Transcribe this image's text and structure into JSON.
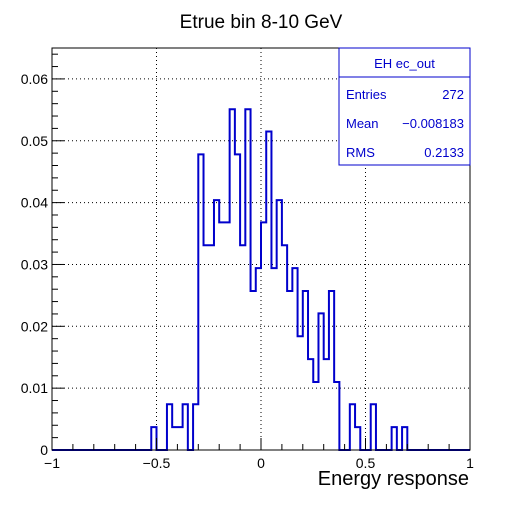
{
  "chart_data": {
    "type": "histogram",
    "title": "Etrue bin 8-10 GeV",
    "xlabel": "Energy response",
    "ylabel": "",
    "xlim": [
      -1,
      1
    ],
    "ylim": [
      0,
      0.065
    ],
    "grid": true,
    "x_ticks": [
      -1,
      -0.5,
      0,
      0.5,
      1
    ],
    "x_tick_labels": [
      "−1",
      "−0.5",
      "0",
      "0.5",
      "1"
    ],
    "y_ticks": [
      0,
      0.01,
      0.02,
      0.03,
      0.04,
      0.05,
      0.06
    ],
    "y_tick_labels": [
      "0",
      "0.01",
      "0.02",
      "0.03",
      "0.04",
      "0.05",
      "0.06"
    ],
    "bin_width": 0.025,
    "bins": [
      {
        "x_low": -1.0,
        "value": 0.0
      },
      {
        "x_low": -0.525,
        "value": 0.0037
      },
      {
        "x_low": -0.5,
        "value": 0.0
      },
      {
        "x_low": -0.45,
        "value": 0.0074
      },
      {
        "x_low": -0.425,
        "value": 0.0037
      },
      {
        "x_low": -0.375,
        "value": 0.0074
      },
      {
        "x_low": -0.35,
        "value": 0.0
      },
      {
        "x_low": -0.325,
        "value": 0.0074
      },
      {
        "x_low": -0.3,
        "value": 0.0478
      },
      {
        "x_low": -0.275,
        "value": 0.0331
      },
      {
        "x_low": -0.225,
        "value": 0.0404
      },
      {
        "x_low": -0.2,
        "value": 0.0368
      },
      {
        "x_low": -0.15,
        "value": 0.0551
      },
      {
        "x_low": -0.125,
        "value": 0.0478
      },
      {
        "x_low": -0.1,
        "value": 0.0331
      },
      {
        "x_low": -0.075,
        "value": 0.0551
      },
      {
        "x_low": -0.05,
        "value": 0.0257
      },
      {
        "x_low": -0.025,
        "value": 0.0294
      },
      {
        "x_low": 0.0,
        "value": 0.0368
      },
      {
        "x_low": 0.025,
        "value": 0.0515
      },
      {
        "x_low": 0.05,
        "value": 0.0294
      },
      {
        "x_low": 0.075,
        "value": 0.0404
      },
      {
        "x_low": 0.1,
        "value": 0.0331
      },
      {
        "x_low": 0.125,
        "value": 0.0257
      },
      {
        "x_low": 0.15,
        "value": 0.0294
      },
      {
        "x_low": 0.175,
        "value": 0.0184
      },
      {
        "x_low": 0.2,
        "value": 0.0257
      },
      {
        "x_low": 0.225,
        "value": 0.0147
      },
      {
        "x_low": 0.25,
        "value": 0.011
      },
      {
        "x_low": 0.275,
        "value": 0.0221
      },
      {
        "x_low": 0.3,
        "value": 0.0147
      },
      {
        "x_low": 0.325,
        "value": 0.0257
      },
      {
        "x_low": 0.35,
        "value": 0.011
      },
      {
        "x_low": 0.375,
        "value": 0.0
      },
      {
        "x_low": 0.425,
        "value": 0.0074
      },
      {
        "x_low": 0.45,
        "value": 0.0037
      },
      {
        "x_low": 0.475,
        "value": 0.0
      },
      {
        "x_low": 0.525,
        "value": 0.0074
      },
      {
        "x_low": 0.55,
        "value": 0.0
      },
      {
        "x_low": 0.625,
        "value": 0.0037
      },
      {
        "x_low": 0.65,
        "value": 0.0
      },
      {
        "x_low": 0.675,
        "value": 0.0037
      },
      {
        "x_low": 0.7,
        "value": 0.0
      },
      {
        "x_low": 1.0,
        "value": 0.0
      }
    ],
    "stats_box": {
      "title": "EH ec_out",
      "rows": [
        {
          "label": "Entries",
          "value": "272"
        },
        {
          "label": "Mean",
          "value": "−0.008183"
        },
        {
          "label": "RMS",
          "value": "0.2133"
        }
      ]
    },
    "colors": {
      "line": "#0000cc",
      "stats_text": "#0000cc",
      "axis": "#000000",
      "grid": "#000000"
    }
  }
}
